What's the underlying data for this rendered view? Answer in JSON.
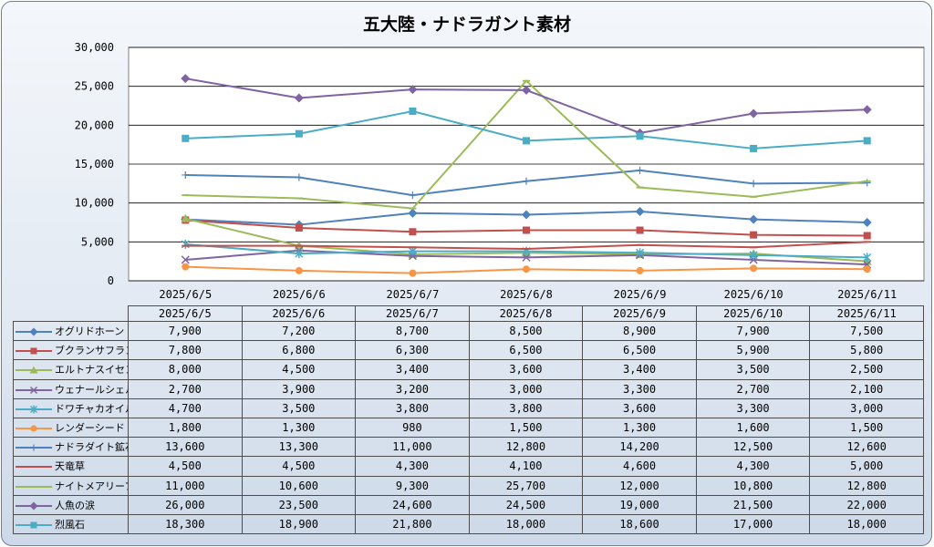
{
  "chart_data": {
    "type": "line",
    "title": "五大陸・ナドラガント素材",
    "categories": [
      "2025/6/5",
      "2025/6/6",
      "2025/6/7",
      "2025/6/8",
      "2025/6/9",
      "2025/6/10",
      "2025/6/11"
    ],
    "ylim": [
      0,
      30000
    ],
    "yticks": [
      "0",
      "5,000",
      "10,000",
      "15,000",
      "20,000",
      "25,000",
      "30,000"
    ],
    "grid": true,
    "legend_placement": "data-table",
    "series": [
      {
        "name": "オグリドホーン",
        "color": "#4f81bd",
        "marker": "diamond",
        "values": [
          7900,
          7200,
          8700,
          8500,
          8900,
          7900,
          7500
        ],
        "labels": [
          "7,900",
          "7,200",
          "8,700",
          "8,500",
          "8,900",
          "7,900",
          "7,500"
        ]
      },
      {
        "name": "ブクランサフラン",
        "color": "#c0504d",
        "marker": "square",
        "values": [
          7800,
          6800,
          6300,
          6500,
          6500,
          5900,
          5800
        ],
        "labels": [
          "7,800",
          "6,800",
          "6,300",
          "6,500",
          "6,500",
          "5,900",
          "5,800"
        ]
      },
      {
        "name": "エルトナスイセン",
        "color": "#9bbb59",
        "marker": "triangle",
        "values": [
          8000,
          4500,
          3400,
          3600,
          3400,
          3500,
          2500
        ],
        "labels": [
          "8,000",
          "4,500",
          "3,400",
          "3,600",
          "3,400",
          "3,500",
          "2,500"
        ]
      },
      {
        "name": "ウェナールシェル",
        "color": "#8064a2",
        "marker": "x",
        "values": [
          2700,
          3900,
          3200,
          3000,
          3300,
          2700,
          2100
        ],
        "labels": [
          "2,700",
          "3,900",
          "3,200",
          "3,000",
          "3,300",
          "2,700",
          "2,100"
        ]
      },
      {
        "name": "ドワチャカオイル",
        "color": "#4bacc6",
        "marker": "star",
        "values": [
          4700,
          3500,
          3800,
          3800,
          3600,
          3300,
          3000
        ],
        "labels": [
          "4,700",
          "3,500",
          "3,800",
          "3,800",
          "3,600",
          "3,300",
          "3,000"
        ]
      },
      {
        "name": "レンダーシード",
        "color": "#f79646",
        "marker": "circle",
        "values": [
          1800,
          1300,
          980,
          1500,
          1300,
          1600,
          1500
        ],
        "labels": [
          "1,800",
          "1,300",
          "980",
          "1,500",
          "1,300",
          "1,600",
          "1,500"
        ]
      },
      {
        "name": "ナドラダイト鉱石",
        "color": "#4f81bd",
        "marker": "plus",
        "values": [
          13600,
          13300,
          11000,
          12800,
          14200,
          12500,
          12600
        ],
        "labels": [
          "13,600",
          "13,300",
          "11,000",
          "12,800",
          "14,200",
          "12,500",
          "12,600"
        ]
      },
      {
        "name": "天竜草",
        "color": "#c0504d",
        "marker": "dash",
        "values": [
          4500,
          4500,
          4300,
          4100,
          4600,
          4300,
          5000
        ],
        "labels": [
          "4,500",
          "4,500",
          "4,300",
          "4,100",
          "4,600",
          "4,300",
          "5,000"
        ]
      },
      {
        "name": "ナイトメアリーフ",
        "color": "#9bbb59",
        "marker": "dash",
        "values": [
          11000,
          10600,
          9300,
          25700,
          12000,
          10800,
          12800
        ],
        "labels": [
          "11,000",
          "10,600",
          "9,300",
          "25,700",
          "12,000",
          "10,800",
          "12,800"
        ]
      },
      {
        "name": "人魚の涙",
        "color": "#8064a2",
        "marker": "diamond",
        "values": [
          26000,
          23500,
          24600,
          24500,
          19000,
          21500,
          22000
        ],
        "labels": [
          "26,000",
          "23,500",
          "24,600",
          "24,500",
          "19,000",
          "21,500",
          "22,000"
        ]
      },
      {
        "name": "烈風石",
        "color": "#4bacc6",
        "marker": "square",
        "values": [
          18300,
          18900,
          21800,
          18000,
          18600,
          17000,
          18000
        ],
        "labels": [
          "18,300",
          "18,900",
          "21,800",
          "18,000",
          "18,600",
          "17,000",
          "18,000"
        ]
      }
    ]
  }
}
